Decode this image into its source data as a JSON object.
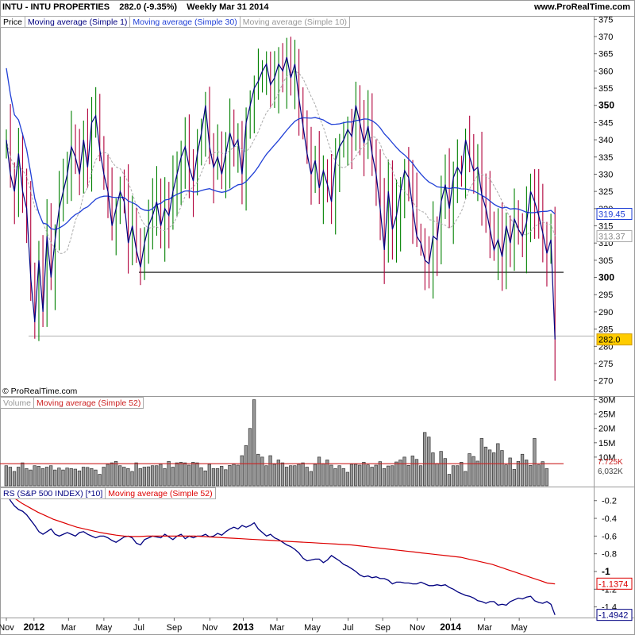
{
  "header": {
    "title": "INTU - INTU PROPERTIES",
    "last": "282.0 (-9.35%)",
    "period": "Weekly  Mar 31 2014",
    "site": "www.ProRealTime.com"
  },
  "price_legend": {
    "price": "Price",
    "ma1": "Moving average (Simple 1)",
    "ma30": "Moving average (Simple 30)",
    "ma10": "Moving average (Simple 10)"
  },
  "volume_legend": {
    "volume": "Volume",
    "ma52": "Moving average (Simple 52)"
  },
  "rs_legend": {
    "rs": "RS (S&P 500 INDEX) [*10]",
    "ma52": "Moving average (Simple 52)"
  },
  "copyright": "© ProRealTime.com",
  "colors": {
    "up": "#008000",
    "down": "#b0003a",
    "ma1": "#000080",
    "ma30": "#1f3fd6",
    "ma10": "#aaaaaa",
    "vol_ma": "#cc2222",
    "rs": "#000080",
    "rs_ma": "#dd0000",
    "last_badge": "#ffcc00"
  },
  "chart_data": [
    {
      "type": "candlestick",
      "name": "Price",
      "y_ticks": [
        "375",
        "370",
        "365",
        "360",
        "355",
        "350",
        "345",
        "340",
        "335",
        "330",
        "325",
        "320",
        "315",
        "310",
        "305",
        "300",
        "295",
        "290",
        "285",
        "280",
        "275",
        "270"
      ],
      "y_bold_ticks": [
        "350",
        "300"
      ],
      "ylim": [
        266,
        376
      ],
      "x_labels": [
        "Nov",
        "2012",
        "Mar",
        "May",
        "Jul",
        "Sep",
        "Nov",
        "2013",
        "Mar",
        "May",
        "Jul",
        "Sep",
        "Nov",
        "2014",
        "Mar",
        "May"
      ],
      "x_label_weeks": [
        0,
        6.8,
        15.3,
        24,
        32.6,
        41.3,
        50.1,
        58.3,
        66.6,
        75.3,
        84.1,
        92.6,
        101.1,
        109.3,
        117.7,
        126.2
      ],
      "x_bold_labels": [
        "2012",
        "2013",
        "2014"
      ],
      "close": [
        340,
        330,
        325,
        336,
        325,
        320,
        300,
        287,
        305,
        290,
        312,
        300,
        311,
        320,
        325,
        330,
        338,
        335,
        330,
        340,
        332,
        345,
        347,
        337,
        330,
        325,
        315,
        320,
        325,
        322,
        310,
        315,
        308,
        303,
        310,
        315,
        318,
        322,
        315,
        320,
        318,
        325,
        330,
        335,
        338,
        332,
        328,
        336,
        342,
        350,
        338,
        332,
        335,
        330,
        336,
        342,
        338,
        340,
        330,
        345,
        350,
        355,
        357,
        360,
        362,
        356,
        358,
        362,
        360,
        364,
        358,
        362,
        352,
        344,
        336,
        330,
        334,
        326,
        331,
        327,
        322,
        334,
        338,
        340,
        343,
        341,
        350,
        345,
        339,
        344,
        336,
        330,
        320,
        308,
        325,
        314,
        318,
        325,
        331,
        329,
        320,
        312,
        310,
        305,
        304,
        312,
        311,
        322,
        327,
        320,
        329,
        332,
        330,
        340,
        335,
        331,
        332,
        324,
        320,
        314,
        308,
        311,
        306,
        315,
        310,
        317,
        314,
        312,
        316,
        325,
        322,
        318,
        313,
        307,
        311,
        282
      ],
      "last_label": "282.0",
      "ma30_label": "319.45",
      "ma10_label": "313.37",
      "support_levels": [
        301.5,
        283
      ]
    },
    {
      "type": "bar",
      "name": "Volume",
      "y_ticks": [
        "30M",
        "25M",
        "20M",
        "15M",
        "10M"
      ],
      "ylim": [
        0,
        31
      ],
      "ma52_label": "7.725K",
      "last_label": "6,032K",
      "values_million": [
        7,
        6.5,
        5,
        6.5,
        8,
        6,
        5.5,
        7,
        6.8,
        6,
        6.5,
        7,
        5.5,
        6.2,
        5.5,
        6.2,
        6,
        5.8,
        5.2,
        6.5,
        6.4,
        6,
        5.5,
        4,
        6.5,
        7.5,
        8,
        8.5,
        7,
        6.5,
        6,
        5,
        8,
        6,
        6.5,
        6.6,
        7,
        7,
        7.5,
        6,
        8.5,
        6.5,
        8,
        8.2,
        8,
        7.2,
        8.2,
        8,
        6.3,
        5.2,
        7.5,
        6,
        6,
        6.8,
        5.6,
        7.1,
        7.5,
        7.2,
        10.5,
        14,
        20,
        30,
        11,
        10,
        7,
        10.5,
        7.5,
        9,
        8,
        6.5,
        7,
        7,
        7.5,
        8,
        6.5,
        5,
        7.5,
        10,
        7.6,
        9,
        7.2,
        6,
        7,
        6,
        4.7,
        7.5,
        7.5,
        7.2,
        8.2,
        7.3,
        6.5,
        7.2,
        8.4,
        6,
        6.9,
        7,
        8.3,
        9,
        10,
        7.1,
        10.4,
        9.2,
        7,
        18.6,
        17,
        11.5,
        7.8,
        12,
        9.5,
        4,
        7,
        7,
        8.2,
        5,
        11.2,
        10.2,
        8.6,
        16.5,
        13.5,
        12.5,
        11.5,
        14.7,
        12.3,
        7.3,
        9.7,
        5.7,
        8.5,
        11,
        9,
        7.1,
        16.5,
        7.3,
        8.4,
        6
      ],
      "ma52_million": 7.7
    },
    {
      "type": "line",
      "name": "RS (S&P 500 INDEX) [*10]",
      "y_ticks": [
        "-0.2",
        "-0.4",
        "-0.6",
        "-0.8",
        "-1",
        "-1.2",
        "-1.4"
      ],
      "ylim": [
        -1.52,
        -0.05
      ],
      "values": [
        -0.1,
        -0.2,
        -0.26,
        -0.3,
        -0.32,
        -0.36,
        -0.42,
        -0.48,
        -0.55,
        -0.58,
        -0.55,
        -0.52,
        -0.58,
        -0.6,
        -0.58,
        -0.56,
        -0.58,
        -0.6,
        -0.56,
        -0.55,
        -0.58,
        -0.6,
        -0.62,
        -0.6,
        -0.6,
        -0.62,
        -0.65,
        -0.67,
        -0.64,
        -0.61,
        -0.6,
        -0.62,
        -0.68,
        -0.7,
        -0.64,
        -0.62,
        -0.6,
        -0.61,
        -0.62,
        -0.58,
        -0.61,
        -0.64,
        -0.6,
        -0.58,
        -0.63,
        -0.6,
        -0.62,
        -0.6,
        -0.6,
        -0.58,
        -0.61,
        -0.6,
        -0.57,
        -0.59,
        -0.55,
        -0.52,
        -0.5,
        -0.52,
        -0.48,
        -0.5,
        -0.48,
        -0.45,
        -0.52,
        -0.56,
        -0.6,
        -0.58,
        -0.62,
        -0.64,
        -0.67,
        -0.7,
        -0.72,
        -0.75,
        -0.79,
        -0.85,
        -0.88,
        -0.87,
        -0.86,
        -0.86,
        -0.9,
        -0.87,
        -0.82,
        -0.85,
        -0.88,
        -0.92,
        -0.94,
        -0.97,
        -1.0,
        -1.04,
        -1.06,
        -1.05,
        -1.07,
        -1.06,
        -1.08,
        -1.08,
        -1.1,
        -1.14,
        -1.12,
        -1.12,
        -1.13,
        -1.13,
        -1.14,
        -1.14,
        -1.12,
        -1.14,
        -1.16,
        -1.16,
        -1.15,
        -1.16,
        -1.15,
        -1.18,
        -1.2,
        -1.23,
        -1.25,
        -1.27,
        -1.28,
        -1.3,
        -1.33,
        -1.34,
        -1.36,
        -1.34,
        -1.34,
        -1.38,
        -1.37,
        -1.38,
        -1.34,
        -1.32,
        -1.3,
        -1.31,
        -1.29,
        -1.28,
        -1.33,
        -1.35,
        -1.36,
        -1.34,
        -1.37,
        -1.49
      ],
      "ma52_values": [
        -0.12,
        -0.17,
        -0.23,
        -0.28,
        -0.33,
        -0.37,
        -0.41,
        -0.44,
        -0.47,
        -0.5,
        -0.52,
        -0.54,
        -0.56,
        -0.575,
        -0.59,
        -0.6,
        -0.605,
        -0.605,
        -0.6,
        -0.6,
        -0.6,
        -0.6,
        -0.6,
        -0.6,
        -0.6,
        -0.605,
        -0.61,
        -0.615,
        -0.62,
        -0.625,
        -0.63,
        -0.635,
        -0.64,
        -0.645,
        -0.65,
        -0.655,
        -0.66,
        -0.665,
        -0.67,
        -0.675,
        -0.68,
        -0.685,
        -0.69,
        -0.695,
        -0.7,
        -0.71,
        -0.72,
        -0.73,
        -0.74,
        -0.75,
        -0.76,
        -0.77,
        -0.78,
        -0.79,
        -0.8,
        -0.81,
        -0.82,
        -0.83,
        -0.84,
        -0.86,
        -0.88,
        -0.9,
        -0.92,
        -0.95,
        -0.98,
        -1.01,
        -1.04,
        -1.07,
        -1.1,
        -1.13,
        -1.14
      ],
      "ma52_label": "-1.1374",
      "last_label": "-1.4942"
    }
  ]
}
